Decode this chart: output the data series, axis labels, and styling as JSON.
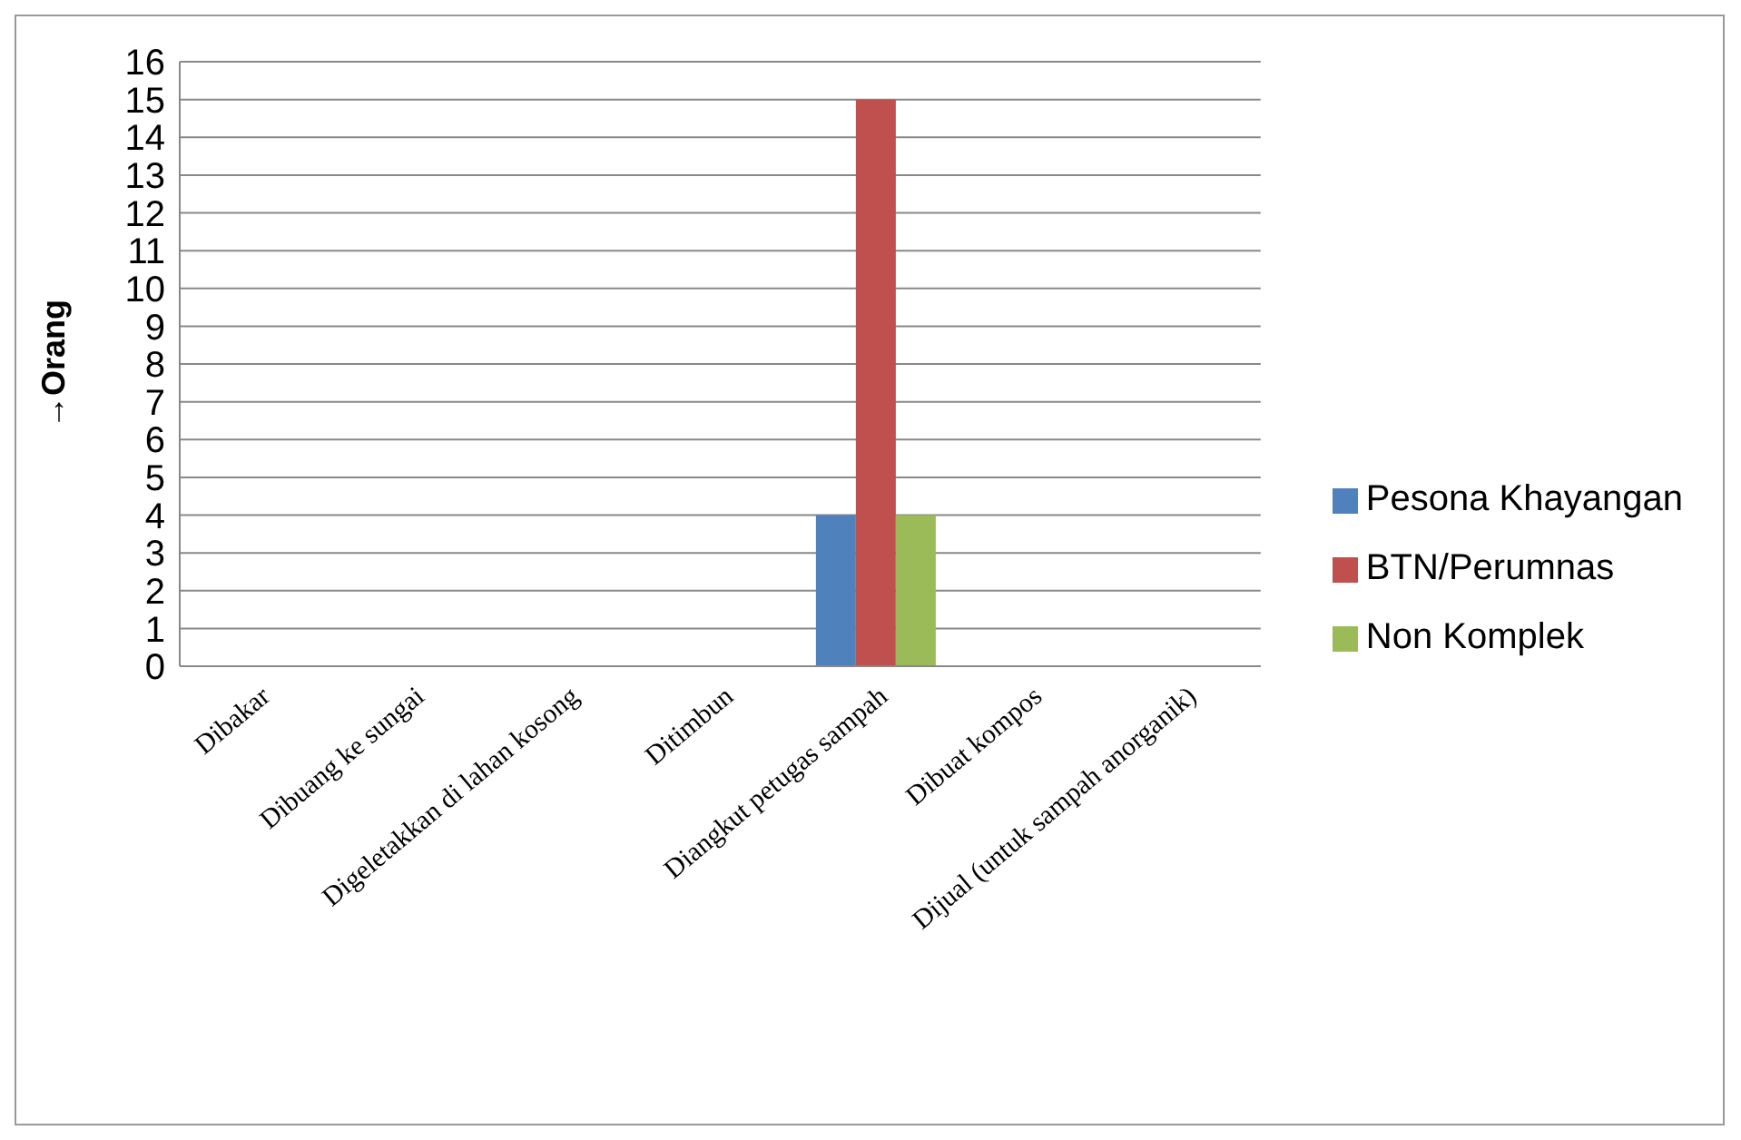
{
  "chart_data": {
    "type": "bar",
    "ylabel": "→Orang",
    "categories": [
      "Dibakar",
      "Dibuang ke sungai",
      "Digeletakkan di lahan kosong",
      "Ditimbun",
      "Diangkut petugas sampah",
      "Dibuat kompos",
      "Dijual (untuk sampah anorganik)"
    ],
    "series": [
      {
        "name": "Pesona Khayangan",
        "color": "#4f81bd",
        "values": [
          0,
          0,
          0,
          0,
          4,
          0,
          0
        ]
      },
      {
        "name": "BTN/Perumnas",
        "color": "#c0504d",
        "values": [
          0,
          0,
          0,
          0,
          15,
          0,
          0
        ]
      },
      {
        "name": "Non Komplek",
        "color": "#9bbb59",
        "values": [
          0,
          0,
          0,
          0,
          4,
          0,
          0
        ]
      }
    ],
    "ylim": [
      0,
      16
    ],
    "yticks": [
      0,
      1,
      2,
      3,
      4,
      5,
      6,
      7,
      8,
      9,
      10,
      11,
      12,
      13,
      14,
      15,
      16
    ],
    "grid": "y",
    "legend": "right"
  }
}
